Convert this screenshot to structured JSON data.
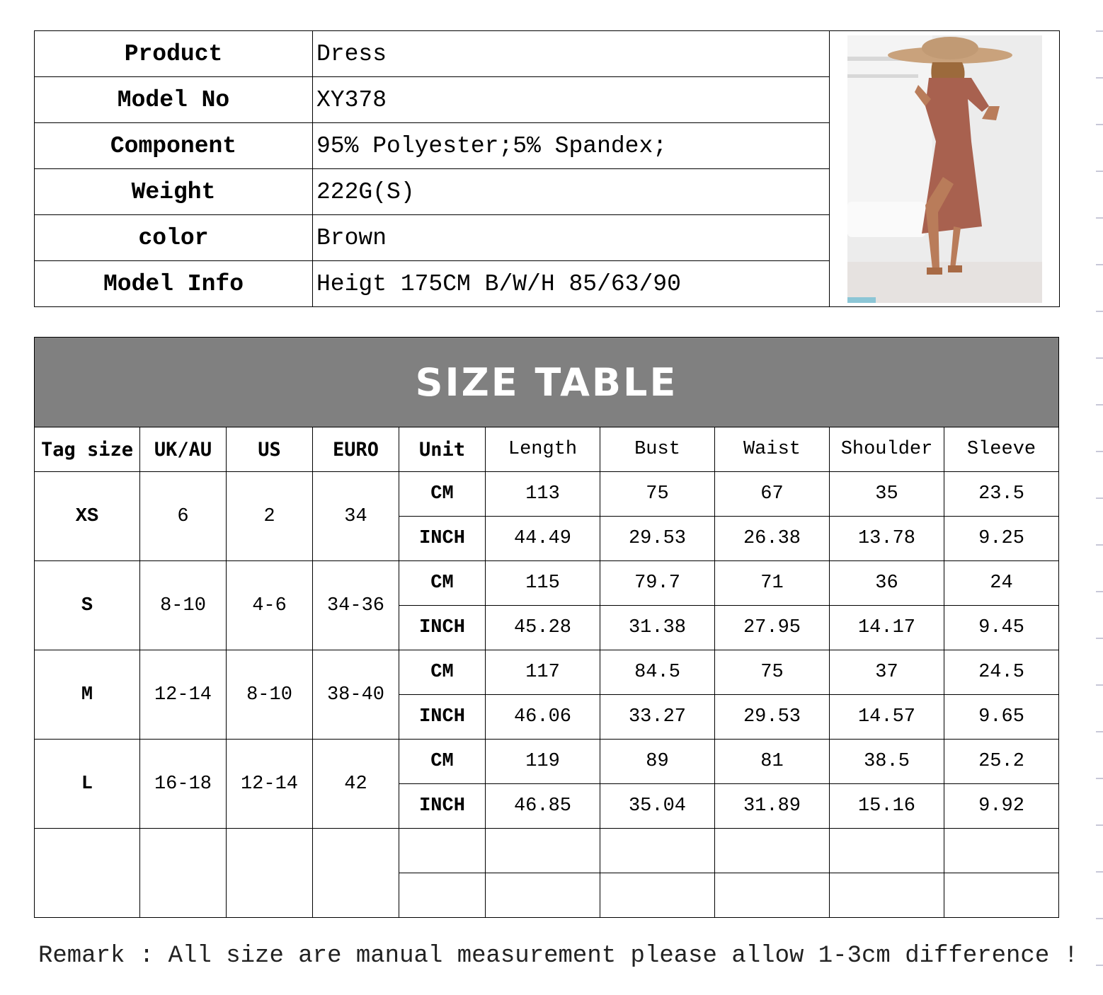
{
  "product_info": [
    {
      "label": "Product",
      "value": "Dress"
    },
    {
      "label": "Model No",
      "value": "XY378"
    },
    {
      "label": "Component",
      "value": "95% Polyester;5% Spandex;"
    },
    {
      "label": "Weight",
      "value": "222G(S)"
    },
    {
      "label": "color",
      "value": "Brown"
    },
    {
      "label": "Model Info",
      "value": "Heigt 175CM B/W/H 85/63/90"
    }
  ],
  "product_image": {
    "description_icon": "model-wearing-brown-dress-photo",
    "dress_color": "#a8614f"
  },
  "size_table": {
    "title": "SIZE TABLE",
    "headers": [
      "Tag size",
      "UK/AU",
      "US",
      "EURO",
      "Unit",
      "Length",
      "Bust",
      "Waist",
      "Shoulder",
      "Sleeve"
    ],
    "rows": [
      {
        "tag": "XS",
        "uk": "6",
        "us": "2",
        "euro": "34",
        "cm": [
          "CM",
          "113",
          "75",
          "67",
          "35",
          "23.5"
        ],
        "inch": [
          "INCH",
          "44.49",
          "29.53",
          "26.38",
          "13.78",
          "9.25"
        ]
      },
      {
        "tag": "S",
        "uk": "8-10",
        "us": "4-6",
        "euro": "34-36",
        "cm": [
          "CM",
          "115",
          "79.7",
          "71",
          "36",
          "24"
        ],
        "inch": [
          "INCH",
          "45.28",
          "31.38",
          "27.95",
          "14.17",
          "9.45"
        ]
      },
      {
        "tag": "M",
        "uk": "12-14",
        "us": "8-10",
        "euro": "38-40",
        "cm": [
          "CM",
          "117",
          "84.5",
          "75",
          "37",
          "24.5"
        ],
        "inch": [
          "INCH",
          "46.06",
          "33.27",
          "29.53",
          "14.57",
          "9.65"
        ]
      },
      {
        "tag": "L",
        "uk": "16-18",
        "us": "12-14",
        "euro": "42",
        "cm": [
          "CM",
          "119",
          "89",
          "81",
          "38.5",
          "25.2"
        ],
        "inch": [
          "INCH",
          "46.85",
          "35.04",
          "31.89",
          "15.16",
          "9.92"
        ]
      }
    ],
    "header_color": "#808080"
  },
  "remark": "Remark : All size are manual measurement please allow 1-3cm difference !"
}
